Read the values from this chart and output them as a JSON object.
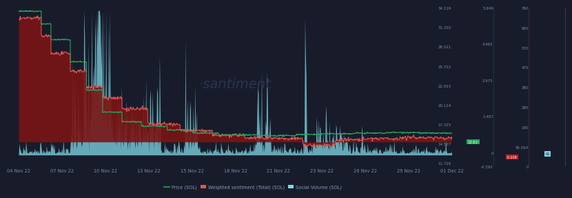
{
  "background_color": "#181c2a",
  "plot_bg_color": "#181c2a",
  "x_dates": [
    "04 Nov 22",
    "07 Nov 22",
    "10 Nov 22",
    "13 Nov 22",
    "15 Nov 22",
    "18 Nov 22",
    "21 Nov 22",
    "23 Nov 22",
    "26 Nov 22",
    "29 Nov 22",
    "01 Dec 22"
  ],
  "price_color": "#26a65b",
  "sentiment_line_color": "#e05555",
  "sentiment_fill_color": "#7b1515",
  "social_volume_color": "#80d8e8",
  "social_volume_alpha": 0.75,
  "watermark_color": "#2a3356",
  "price_ylim": [
    11.228,
    34.119
  ],
  "sentiment_ylim": [
    -0.592,
    5.949
  ],
  "social_ylim": [
    0,
    760
  ],
  "price_ticks": [
    11.728,
    14.527,
    17.325,
    20.124,
    22.923,
    25.722,
    28.521,
    31.32,
    34.119
  ],
  "sentiment_ticks": [
    -0.592,
    0.0,
    1.487,
    2.975,
    4.462,
    5.949
  ],
  "social_ticks": [
    0,
    95,
    190,
    285,
    380,
    475,
    570,
    665,
    760
  ],
  "tick_label_color": "#7a8aaa",
  "legend_label_color": "#8899bb"
}
